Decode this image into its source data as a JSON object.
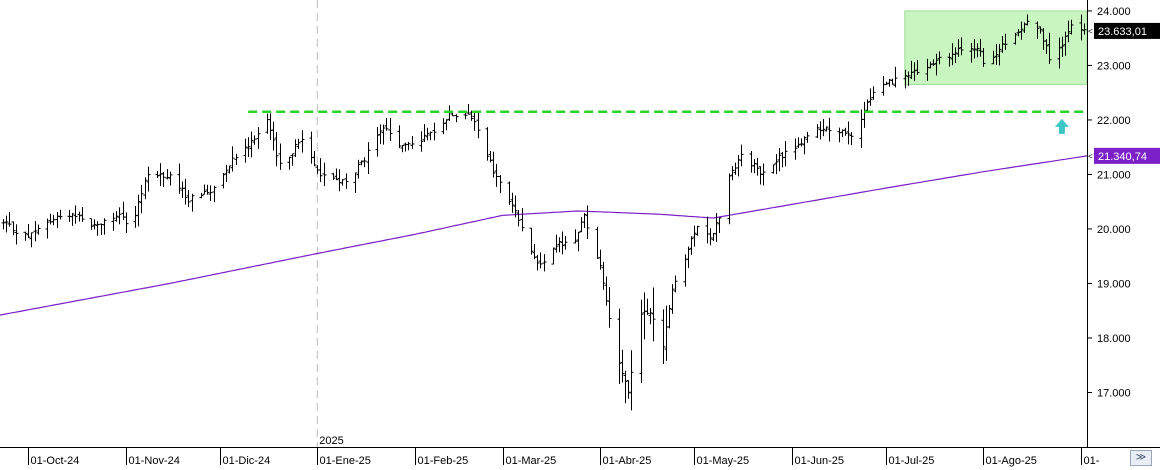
{
  "chart_data": {
    "type": "ohlc",
    "y_range": [
      16000,
      24200
    ],
    "y_ticks": [
      {
        "value": 17000,
        "label": "17.000"
      },
      {
        "value": 18000,
        "label": "18.000"
      },
      {
        "value": 19000,
        "label": "19.000"
      },
      {
        "value": 20000,
        "label": "20.000"
      },
      {
        "value": 21000,
        "label": "21.000"
      },
      {
        "value": 22000,
        "label": "22.000"
      },
      {
        "value": 23000,
        "label": "23.000"
      },
      {
        "value": 24000,
        "label": "24.000"
      }
    ],
    "x_range": [
      "2024-09-22",
      "2025-09-03"
    ],
    "x_ticks": [
      {
        "date": "2024-10-01",
        "label": "01-Oct-24"
      },
      {
        "date": "2024-11-01",
        "label": "01-Nov-24"
      },
      {
        "date": "2024-12-01",
        "label": "01-Dic-24"
      },
      {
        "date": "2025-01-01",
        "label": "01-Ene-25"
      },
      {
        "date": "2025-02-01",
        "label": "01-Feb-25"
      },
      {
        "date": "2025-03-01",
        "label": "01-Mar-25"
      },
      {
        "date": "2025-04-01",
        "label": "01-Abr-25"
      },
      {
        "date": "2025-05-01",
        "label": "01-May-25"
      },
      {
        "date": "2025-06-01",
        "label": "01-Jun-25"
      },
      {
        "date": "2025-07-01",
        "label": "01-Jul-25"
      },
      {
        "date": "2025-08-01",
        "label": "01-Ago-25"
      },
      {
        "date": "2025-09-01",
        "label": "01-"
      }
    ],
    "year_marker": {
      "date": "2025-01-01",
      "label": "2025"
    },
    "price_anchors": [
      [
        "2024-09-23",
        20100
      ],
      [
        "2024-10-01",
        19850
      ],
      [
        "2024-10-08",
        20150
      ],
      [
        "2024-10-15",
        20300
      ],
      [
        "2024-10-22",
        20050
      ],
      [
        "2024-10-29",
        20250
      ],
      [
        "2024-11-03",
        20050
      ],
      [
        "2024-11-08",
        21050
      ],
      [
        "2024-11-15",
        20950
      ],
      [
        "2024-11-21",
        20550
      ],
      [
        "2024-11-28",
        20700
      ],
      [
        "2024-12-05",
        21300
      ],
      [
        "2024-12-10",
        21550
      ],
      [
        "2024-12-16",
        22000
      ],
      [
        "2024-12-20",
        21150
      ],
      [
        "2024-12-27",
        21650
      ],
      [
        "2025-01-02",
        21000
      ],
      [
        "2025-01-10",
        20850
      ],
      [
        "2025-01-15",
        21200
      ],
      [
        "2025-01-22",
        21850
      ],
      [
        "2025-01-28",
        21500
      ],
      [
        "2025-02-05",
        21700
      ],
      [
        "2025-02-12",
        22100
      ],
      [
        "2025-02-18",
        22150
      ],
      [
        "2025-02-21",
        21800
      ],
      [
        "2025-02-26",
        21050
      ],
      [
        "2025-03-05",
        20300
      ],
      [
        "2025-03-10",
        19650
      ],
      [
        "2025-03-13",
        19300
      ],
      [
        "2025-03-18",
        19700
      ],
      [
        "2025-03-24",
        19800
      ],
      [
        "2025-03-27",
        20250
      ],
      [
        "2025-04-01",
        19300
      ],
      [
        "2025-04-04",
        18400
      ],
      [
        "2025-04-08",
        17300
      ],
      [
        "2025-04-10",
        17000
      ],
      [
        "2025-04-14",
        18400
      ],
      [
        "2025-04-17",
        18500
      ],
      [
        "2025-04-21",
        17800
      ],
      [
        "2025-04-24",
        18950
      ],
      [
        "2025-04-29",
        19600
      ],
      [
        "2025-05-02",
        20100
      ],
      [
        "2025-05-06",
        19850
      ],
      [
        "2025-05-09",
        20200
      ],
      [
        "2025-05-12",
        21000
      ],
      [
        "2025-05-16",
        21350
      ],
      [
        "2025-05-23",
        21000
      ],
      [
        "2025-05-28",
        21300
      ],
      [
        "2025-06-04",
        21600
      ],
      [
        "2025-06-10",
        21850
      ],
      [
        "2025-06-16",
        21800
      ],
      [
        "2025-06-20",
        21650
      ],
      [
        "2025-06-24",
        22150
      ],
      [
        "2025-06-27",
        22550
      ],
      [
        "2025-07-02",
        22700
      ],
      [
        "2025-07-08",
        22800
      ],
      [
        "2025-07-14",
        22950
      ],
      [
        "2025-07-18",
        23100
      ],
      [
        "2025-07-24",
        23250
      ],
      [
        "2025-07-30",
        23350
      ],
      [
        "2025-08-02",
        22900
      ],
      [
        "2025-08-06",
        23300
      ],
      [
        "2025-08-12",
        23600
      ],
      [
        "2025-08-15",
        23850
      ],
      [
        "2025-08-19",
        23700
      ],
      [
        "2025-08-22",
        23100
      ],
      [
        "2025-08-26",
        23400
      ],
      [
        "2025-08-29",
        23700
      ],
      [
        "2025-09-02",
        23633
      ]
    ],
    "sma_anchors": [
      [
        "2024-09-22",
        18420
      ],
      [
        "2024-11-15",
        19000
      ],
      [
        "2025-01-01",
        19550
      ],
      [
        "2025-02-01",
        19900
      ],
      [
        "2025-03-01",
        20250
      ],
      [
        "2025-03-25",
        20330
      ],
      [
        "2025-04-20",
        20270
      ],
      [
        "2025-05-07",
        20200
      ],
      [
        "2025-06-01",
        20450
      ],
      [
        "2025-07-01",
        20750
      ],
      [
        "2025-08-01",
        21050
      ],
      [
        "2025-09-03",
        21340
      ]
    ],
    "last_price": {
      "value": 23633.01,
      "label": "23.633,01"
    },
    "sma_last": {
      "value": 21340.74,
      "label": "21.340,74"
    },
    "resistance": {
      "value": 22150,
      "from": "2024-12-10",
      "to": "2025-09-03"
    },
    "highlight_box": {
      "from": "2025-07-07",
      "to": "2025-09-03",
      "y_low": 22650,
      "y_high": 24000
    },
    "arrow_up": {
      "date": "2025-08-26",
      "value": 21800
    },
    "colors": {
      "bars": "#000000",
      "sma": "#7b1fc9",
      "resistance": "#2ad42a",
      "highlight_fill": "#c8f5c0",
      "highlight_stroke": "#a0df98",
      "arrow": "#3cc6c6",
      "year_line": "#bdbdbd",
      "price_badge_bg": "#000000",
      "sma_badge_bg": "#7b1fc9"
    }
  }
}
